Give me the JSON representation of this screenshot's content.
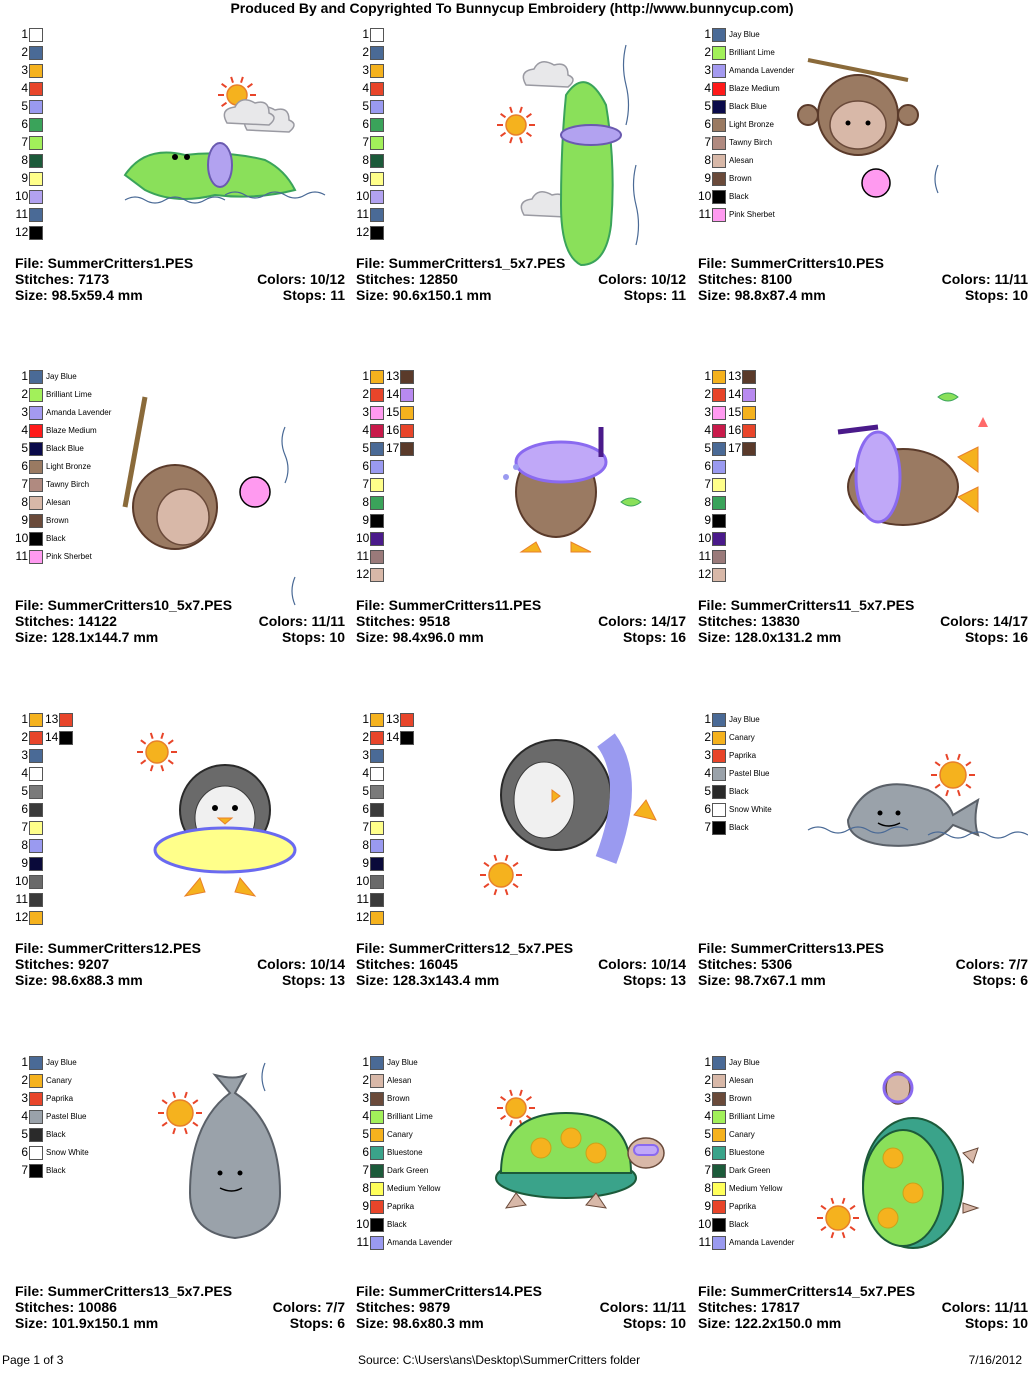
{
  "header": "Produced By and Copyrighted To Bunnycup Embroidery (http://www.bunnycup.com)",
  "labels": {
    "file": "File: ",
    "stitches": "Stitches: ",
    "size": "Size: ",
    "colors": "Colors: ",
    "stops": "Stops: "
  },
  "footer": {
    "page": "Page 1 of 3",
    "source": "Source: C:\\Users\\ans\\Desktop\\SummerCritters folder",
    "date": "7/16/2012"
  },
  "designs": [
    {
      "file": "SummerCritters1.PES",
      "stitches": "7173",
      "size": "98.5x59.4 mm",
      "colors": "10/12",
      "stops": "11",
      "art": "croc-flat",
      "swatches": [
        {
          "n": "1",
          "c": "#ffffff"
        },
        {
          "n": "2",
          "c": "#4a6a96"
        },
        {
          "n": "3",
          "c": "#f5b21e"
        },
        {
          "n": "4",
          "c": "#e8452a"
        },
        {
          "n": "5",
          "c": "#9a9af0"
        },
        {
          "n": "6",
          "c": "#3aa35a"
        },
        {
          "n": "7",
          "c": "#a2f05a"
        },
        {
          "n": "8",
          "c": "#1c5a3a"
        },
        {
          "n": "9",
          "c": "#ffff8a"
        },
        {
          "n": "10",
          "c": "#b2a2f0"
        },
        {
          "n": "11",
          "c": "#4a6a96"
        },
        {
          "n": "12",
          "c": "#000000"
        }
      ]
    },
    {
      "file": "SummerCritters1_5x7.PES",
      "stitches": "12850",
      "size": "90.6x150.1 mm",
      "colors": "10/12",
      "stops": "11",
      "art": "croc-vert",
      "swatches": [
        {
          "n": "1",
          "c": "#ffffff"
        },
        {
          "n": "2",
          "c": "#4a6a96"
        },
        {
          "n": "3",
          "c": "#f5b21e"
        },
        {
          "n": "4",
          "c": "#e8452a"
        },
        {
          "n": "5",
          "c": "#9a9af0"
        },
        {
          "n": "6",
          "c": "#3aa35a"
        },
        {
          "n": "7",
          "c": "#a2f05a"
        },
        {
          "n": "8",
          "c": "#1c5a3a"
        },
        {
          "n": "9",
          "c": "#ffff8a"
        },
        {
          "n": "10",
          "c": "#b2a2f0"
        },
        {
          "n": "11",
          "c": "#4a6a96"
        },
        {
          "n": "12",
          "c": "#000000"
        }
      ]
    },
    {
      "file": "SummerCritters10.PES",
      "stitches": "8100",
      "size": "98.8x87.4 mm",
      "colors": "11/11",
      "stops": "10",
      "art": "monkey",
      "swatches": [
        {
          "n": "1",
          "c": "#4a6a96",
          "name": "Jay Blue"
        },
        {
          "n": "2",
          "c": "#a2f05a",
          "name": "Brilliant Lime"
        },
        {
          "n": "3",
          "c": "#a49af0",
          "name": "Amanda Lavender"
        },
        {
          "n": "4",
          "c": "#ff1a1a",
          "name": "Blaze Medium"
        },
        {
          "n": "5",
          "c": "#0a0a4a",
          "name": "Black Blue"
        },
        {
          "n": "6",
          "c": "#9a7a62",
          "name": "Light Bronze"
        },
        {
          "n": "7",
          "c": "#b08a80",
          "name": "Tawny Birch"
        },
        {
          "n": "8",
          "c": "#d8b8a8",
          "name": "Alesan"
        },
        {
          "n": "9",
          "c": "#6a4a3a",
          "name": "Brown"
        },
        {
          "n": "10",
          "c": "#000000",
          "name": "Black"
        },
        {
          "n": "11",
          "c": "#ff9af0",
          "name": "Pink Sherbet"
        }
      ]
    },
    {
      "file": "SummerCritters10_5x7.PES",
      "stitches": "14122",
      "size": "128.1x144.7 mm",
      "colors": "11/11",
      "stops": "10",
      "art": "monkey-tilt",
      "swatches": [
        {
          "n": "1",
          "c": "#4a6a96",
          "name": "Jay Blue"
        },
        {
          "n": "2",
          "c": "#a2f05a",
          "name": "Brilliant Lime"
        },
        {
          "n": "3",
          "c": "#a49af0",
          "name": "Amanda Lavender"
        },
        {
          "n": "4",
          "c": "#ff1a1a",
          "name": "Blaze Medium"
        },
        {
          "n": "5",
          "c": "#0a0a4a",
          "name": "Black Blue"
        },
        {
          "n": "6",
          "c": "#9a7a62",
          "name": "Light Bronze"
        },
        {
          "n": "7",
          "c": "#b08a80",
          "name": "Tawny Birch"
        },
        {
          "n": "8",
          "c": "#d8b8a8",
          "name": "Alesan"
        },
        {
          "n": "9",
          "c": "#6a4a3a",
          "name": "Brown"
        },
        {
          "n": "10",
          "c": "#000000",
          "name": "Black"
        },
        {
          "n": "11",
          "c": "#ff9af0",
          "name": "Pink Sherbet"
        }
      ]
    },
    {
      "file": "SummerCritters11.PES",
      "stitches": "9518",
      "size": "98.4x96.0 mm",
      "colors": "14/17",
      "stops": "16",
      "art": "owl",
      "swatches": [
        {
          "n": "1",
          "c": "#f5b21e"
        },
        {
          "n": "2",
          "c": "#e8452a"
        },
        {
          "n": "3",
          "c": "#ff9af0"
        },
        {
          "n": "4",
          "c": "#c81a4a"
        },
        {
          "n": "5",
          "c": "#4a6a96"
        },
        {
          "n": "6",
          "c": "#9a9af0"
        },
        {
          "n": "7",
          "c": "#ffff8a"
        },
        {
          "n": "8",
          "c": "#3aa35a"
        },
        {
          "n": "9",
          "c": "#000000"
        },
        {
          "n": "10",
          "c": "#4a1a8a"
        },
        {
          "n": "11",
          "c": "#9a7a7a"
        },
        {
          "n": "12",
          "c": "#d8b8a8"
        },
        {
          "n": "13",
          "c": "#5a3a2a"
        },
        {
          "n": "14",
          "c": "#b88af0"
        },
        {
          "n": "15",
          "c": "#f5b21e"
        },
        {
          "n": "16",
          "c": "#e8452a"
        },
        {
          "n": "17",
          "c": "#5a3a2a"
        }
      ]
    },
    {
      "file": "SummerCritters11_5x7.PES",
      "stitches": "13830",
      "size": "128.0x131.2 mm",
      "colors": "14/17",
      "stops": "16",
      "art": "owl-side",
      "swatches": [
        {
          "n": "1",
          "c": "#f5b21e"
        },
        {
          "n": "2",
          "c": "#e8452a"
        },
        {
          "n": "3",
          "c": "#ff9af0"
        },
        {
          "n": "4",
          "c": "#c81a4a"
        },
        {
          "n": "5",
          "c": "#4a6a96"
        },
        {
          "n": "6",
          "c": "#9a9af0"
        },
        {
          "n": "7",
          "c": "#ffff8a"
        },
        {
          "n": "8",
          "c": "#3aa35a"
        },
        {
          "n": "9",
          "c": "#000000"
        },
        {
          "n": "10",
          "c": "#4a1a8a"
        },
        {
          "n": "11",
          "c": "#9a7a7a"
        },
        {
          "n": "12",
          "c": "#d8b8a8"
        },
        {
          "n": "13",
          "c": "#5a3a2a"
        },
        {
          "n": "14",
          "c": "#b88af0"
        },
        {
          "n": "15",
          "c": "#f5b21e"
        },
        {
          "n": "16",
          "c": "#e8452a"
        },
        {
          "n": "17",
          "c": "#5a3a2a"
        }
      ]
    },
    {
      "file": "SummerCritters12.PES",
      "stitches": "9207",
      "size": "98.6x88.3 mm",
      "colors": "10/14",
      "stops": "13",
      "art": "penguin",
      "swatches": [
        {
          "n": "1",
          "c": "#f5b21e"
        },
        {
          "n": "2",
          "c": "#e8452a"
        },
        {
          "n": "3",
          "c": "#4a6a96"
        },
        {
          "n": "4",
          "c": "#ffffff"
        },
        {
          "n": "5",
          "c": "#7a7a7a"
        },
        {
          "n": "6",
          "c": "#3a3a3a"
        },
        {
          "n": "7",
          "c": "#ffff8a"
        },
        {
          "n": "8",
          "c": "#9a9af0"
        },
        {
          "n": "9",
          "c": "#0a0a3a"
        },
        {
          "n": "10",
          "c": "#6a6a6a"
        },
        {
          "n": "11",
          "c": "#3a3a3a"
        },
        {
          "n": "12",
          "c": "#f5b21e"
        },
        {
          "n": "13",
          "c": "#e8452a"
        },
        {
          "n": "14",
          "c": "#000000"
        }
      ]
    },
    {
      "file": "SummerCritters12_5x7.PES",
      "stitches": "16045",
      "size": "128.3x143.4 mm",
      "colors": "10/14",
      "stops": "13",
      "art": "penguin-side",
      "swatches": [
        {
          "n": "1",
          "c": "#f5b21e"
        },
        {
          "n": "2",
          "c": "#e8452a"
        },
        {
          "n": "3",
          "c": "#4a6a96"
        },
        {
          "n": "4",
          "c": "#ffffff"
        },
        {
          "n": "5",
          "c": "#7a7a7a"
        },
        {
          "n": "6",
          "c": "#3a3a3a"
        },
        {
          "n": "7",
          "c": "#ffff8a"
        },
        {
          "n": "8",
          "c": "#9a9af0"
        },
        {
          "n": "9",
          "c": "#0a0a3a"
        },
        {
          "n": "10",
          "c": "#6a6a6a"
        },
        {
          "n": "11",
          "c": "#3a3a3a"
        },
        {
          "n": "12",
          "c": "#f5b21e"
        },
        {
          "n": "13",
          "c": "#e8452a"
        },
        {
          "n": "14",
          "c": "#000000"
        }
      ]
    },
    {
      "file": "SummerCritters13.PES",
      "stitches": "5306",
      "size": "98.7x67.1 mm",
      "colors": "7/7",
      "stops": "6",
      "art": "whale",
      "swatches": [
        {
          "n": "1",
          "c": "#4a6a96",
          "name": "Jay Blue"
        },
        {
          "n": "2",
          "c": "#f5b21e",
          "name": "Canary"
        },
        {
          "n": "3",
          "c": "#e8452a",
          "name": "Paprika"
        },
        {
          "n": "4",
          "c": "#9aa2aa",
          "name": "Pastel Blue"
        },
        {
          "n": "5",
          "c": "#2a2a2a",
          "name": "Black"
        },
        {
          "n": "6",
          "c": "#ffffff",
          "name": "Snow White"
        },
        {
          "n": "7",
          "c": "#000000",
          "name": "Black"
        }
      ]
    },
    {
      "file": "SummerCritters13_5x7.PES",
      "stitches": "10086",
      "size": "101.9x150.1 mm",
      "colors": "7/7",
      "stops": "6",
      "art": "whale-vert",
      "swatches": [
        {
          "n": "1",
          "c": "#4a6a96",
          "name": "Jay Blue"
        },
        {
          "n": "2",
          "c": "#f5b21e",
          "name": "Canary"
        },
        {
          "n": "3",
          "c": "#e8452a",
          "name": "Paprika"
        },
        {
          "n": "4",
          "c": "#9aa2aa",
          "name": "Pastel Blue"
        },
        {
          "n": "5",
          "c": "#2a2a2a",
          "name": "Black"
        },
        {
          "n": "6",
          "c": "#ffffff",
          "name": "Snow White"
        },
        {
          "n": "7",
          "c": "#000000",
          "name": "Black"
        }
      ]
    },
    {
      "file": "SummerCritters14.PES",
      "stitches": "9879",
      "size": "98.6x80.3 mm",
      "colors": "11/11",
      "stops": "10",
      "art": "turtle",
      "swatches": [
        {
          "n": "1",
          "c": "#4a6a96",
          "name": "Jay Blue"
        },
        {
          "n": "2",
          "c": "#d8b8a8",
          "name": "Alesan"
        },
        {
          "n": "3",
          "c": "#6a4a3a",
          "name": "Brown"
        },
        {
          "n": "4",
          "c": "#a2f05a",
          "name": "Brilliant Lime"
        },
        {
          "n": "5",
          "c": "#f5b21e",
          "name": "Canary"
        },
        {
          "n": "6",
          "c": "#3aa38a",
          "name": "Bluestone"
        },
        {
          "n": "7",
          "c": "#1c5a3a",
          "name": "Dark Green"
        },
        {
          "n": "8",
          "c": "#ffff5a",
          "name": "Medium Yellow"
        },
        {
          "n": "9",
          "c": "#e8452a",
          "name": "Paprika"
        },
        {
          "n": "10",
          "c": "#000000",
          "name": "Black"
        },
        {
          "n": "11",
          "c": "#9a9af0",
          "name": "Amanda Lavender"
        }
      ]
    },
    {
      "file": "SummerCritters14_5x7.PES",
      "stitches": "17817",
      "size": "122.2x150.0 mm",
      "colors": "11/11",
      "stops": "10",
      "art": "turtle-vert",
      "swatches": [
        {
          "n": "1",
          "c": "#4a6a96",
          "name": "Jay Blue"
        },
        {
          "n": "2",
          "c": "#d8b8a8",
          "name": "Alesan"
        },
        {
          "n": "3",
          "c": "#6a4a3a",
          "name": "Brown"
        },
        {
          "n": "4",
          "c": "#a2f05a",
          "name": "Brilliant Lime"
        },
        {
          "n": "5",
          "c": "#f5b21e",
          "name": "Canary"
        },
        {
          "n": "6",
          "c": "#3aa38a",
          "name": "Bluestone"
        },
        {
          "n": "7",
          "c": "#1c5a3a",
          "name": "Dark Green"
        },
        {
          "n": "8",
          "c": "#ffff5a",
          "name": "Medium Yellow"
        },
        {
          "n": "9",
          "c": "#e8452a",
          "name": "Paprika"
        },
        {
          "n": "10",
          "c": "#000000",
          "name": "Black"
        },
        {
          "n": "11",
          "c": "#9a9af0",
          "name": "Amanda Lavender"
        }
      ]
    }
  ]
}
